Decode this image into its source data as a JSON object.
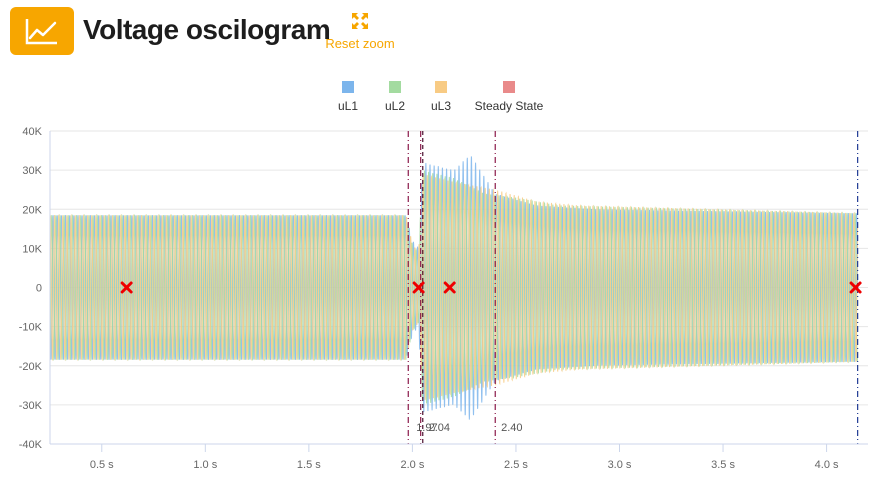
{
  "header": {
    "title": "Voltage oscilogram",
    "reset_label": "Reset zoom",
    "logo_icon": "line-chart-icon",
    "reset_icon": "expand-arrows-icon",
    "accent_color": "#f7a600"
  },
  "legend": [
    {
      "label": "uL1",
      "color": "#7cb5ec"
    },
    {
      "label": "uL2",
      "color": "#a3dba0"
    },
    {
      "label": "uL3",
      "color": "#f8cb84"
    },
    {
      "label": "Steady State",
      "color": "#e98a8a"
    }
  ],
  "chart_data": {
    "type": "line",
    "title": "",
    "xlabel": "",
    "ylabel": "",
    "x_unit": "s",
    "xlim": [
      0.25,
      4.2
    ],
    "ylim": [
      -40000,
      40000
    ],
    "x_ticks": [
      0.5,
      1.0,
      1.5,
      2.0,
      2.5,
      3.0,
      3.5,
      4.0
    ],
    "x_tick_labels": [
      "0.5 s",
      "1.0 s",
      "1.5 s",
      "2.0 s",
      "2.5 s",
      "3.0 s",
      "3.5 s",
      "4.0 s"
    ],
    "y_ticks": [
      40000,
      30000,
      20000,
      10000,
      0,
      -10000,
      -20000,
      -30000,
      -40000
    ],
    "y_tick_labels": [
      "40K",
      "30K",
      "20K",
      "10K",
      "0",
      "-10K",
      "-20K",
      "-30K",
      "-40K"
    ],
    "grid": true,
    "legend_position": "top-center",
    "series": [
      {
        "name": "uL1",
        "color": "#7cb5ec",
        "phase_deg": 0,
        "envelope": [
          [
            0.25,
            18500
          ],
          [
            1.97,
            18500
          ],
          [
            2.0,
            12000
          ],
          [
            2.03,
            10000
          ],
          [
            2.05,
            32000
          ],
          [
            2.2,
            30000
          ],
          [
            2.28,
            34000
          ],
          [
            2.4,
            24000
          ],
          [
            2.6,
            21000
          ],
          [
            2.9,
            20000
          ],
          [
            4.15,
            19000
          ]
        ]
      },
      {
        "name": "uL2",
        "color": "#a3dba0",
        "phase_deg": 120,
        "envelope": [
          [
            0.25,
            18500
          ],
          [
            1.97,
            18500
          ],
          [
            2.0,
            11000
          ],
          [
            2.03,
            9000
          ],
          [
            2.05,
            30000
          ],
          [
            2.2,
            28000
          ],
          [
            2.35,
            24000
          ],
          [
            2.5,
            23000
          ],
          [
            2.7,
            21000
          ],
          [
            4.15,
            19000
          ]
        ]
      },
      {
        "name": "uL3",
        "color": "#f8cb84",
        "phase_deg": 240,
        "envelope": [
          [
            0.25,
            18500
          ],
          [
            1.97,
            18500
          ],
          [
            2.0,
            11000
          ],
          [
            2.03,
            9000
          ],
          [
            2.05,
            29000
          ],
          [
            2.2,
            27000
          ],
          [
            2.4,
            25000
          ],
          [
            2.6,
            22000
          ],
          [
            2.8,
            21000
          ],
          [
            4.15,
            19000
          ]
        ]
      }
    ],
    "markers": [
      {
        "x": 0.62,
        "y": 0
      },
      {
        "x": 2.03,
        "y": 0
      },
      {
        "x": 2.18,
        "y": 0
      },
      {
        "x": 4.14,
        "y": 0
      }
    ],
    "vertical_lines": [
      {
        "x": 1.98,
        "color": "#8b1a4a",
        "style": "dash-dot",
        "label": ""
      },
      {
        "x": 2.04,
        "color": "#8b1a4a",
        "style": "dash-dot",
        "label": ""
      },
      {
        "x": 2.05,
        "color": "#4a1030",
        "style": "dashed",
        "label": ""
      },
      {
        "x": 2.4,
        "color": "#8b1a4a",
        "style": "dash-dot",
        "label": ""
      },
      {
        "x": 4.15,
        "color": "#1f3a93",
        "style": "dash-dot",
        "label": ""
      }
    ],
    "annotations": [
      {
        "x": 2.07,
        "text": "1.97"
      },
      {
        "x": 2.13,
        "text": "2.04"
      },
      {
        "x": 2.48,
        "text": "2.40"
      }
    ]
  }
}
